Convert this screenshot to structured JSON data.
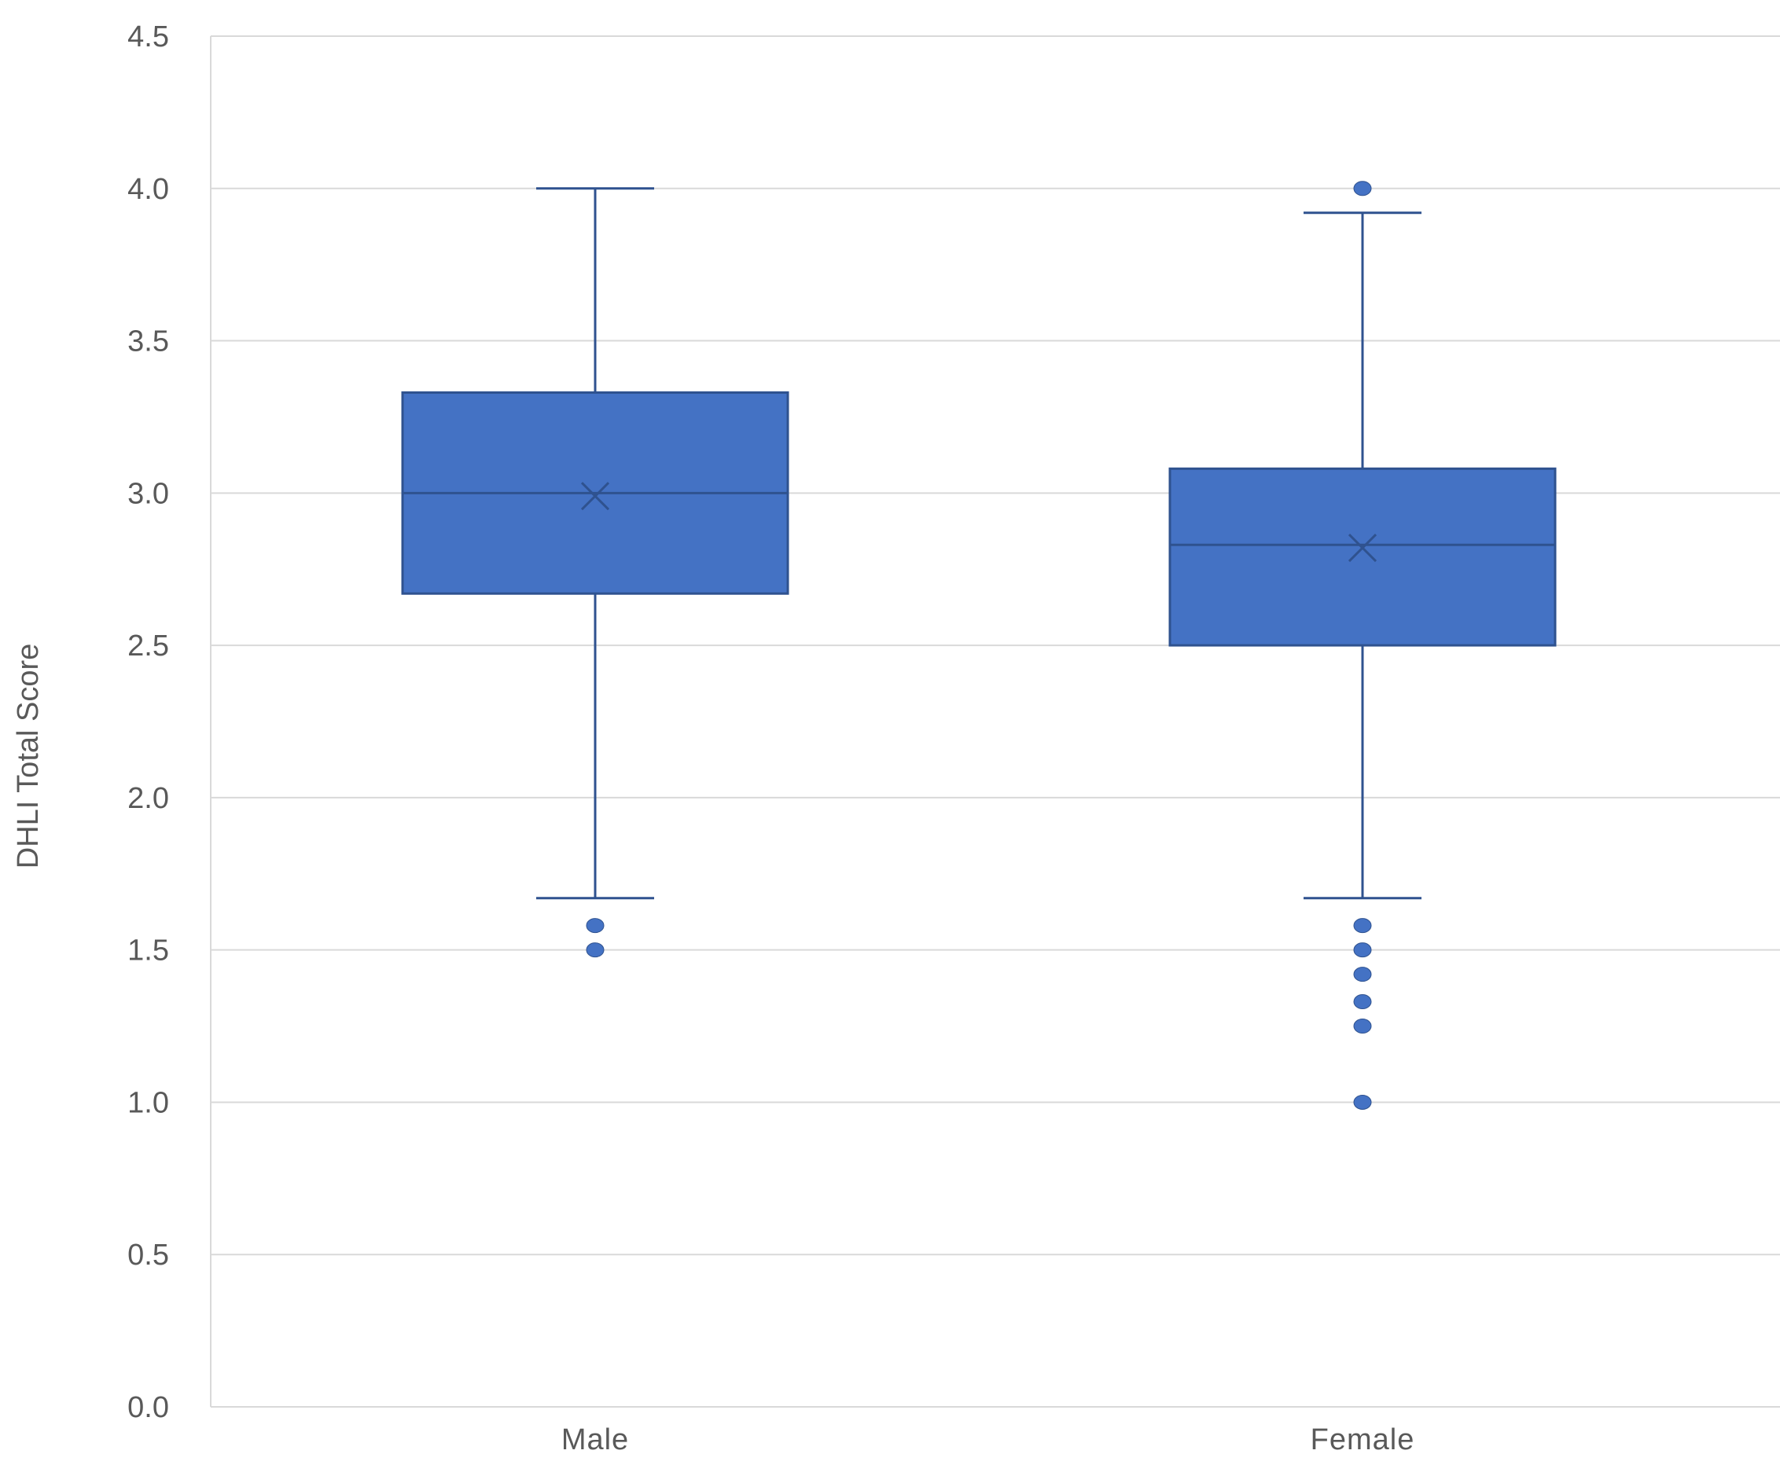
{
  "chart_data": {
    "type": "box",
    "ylabel": "DHLI Total Score",
    "xlabel": "",
    "ylim": [
      0,
      4.5
    ],
    "y_ticks": [
      0,
      0.5,
      1,
      1.5,
      2,
      2.5,
      3,
      3.5,
      4,
      4.5
    ],
    "y_tick_labels": [
      "0.0",
      "0.5",
      "1.0",
      "1.5",
      "2.0",
      "2.5",
      "3.0",
      "3.5",
      "4.0",
      "4.5"
    ],
    "grid": true,
    "categories": [
      "Male",
      "Female"
    ],
    "series": [
      {
        "category": "Male",
        "whisker_low": 1.67,
        "q1": 2.67,
        "median": 3.0,
        "mean": 2.99,
        "q3": 3.33,
        "whisker_high": 4.0,
        "outliers": [
          1.58,
          1.5
        ]
      },
      {
        "category": "Female",
        "whisker_low": 1.67,
        "q1": 2.5,
        "median": 2.83,
        "mean": 2.82,
        "q3": 3.08,
        "whisker_high": 3.92,
        "outliers": [
          4.0,
          1.58,
          1.5,
          1.42,
          1.33,
          1.25,
          1.0
        ]
      }
    ],
    "colors": {
      "box_fill": "#4472C4",
      "box_stroke": "#2F528F",
      "gridline": "#D9D9D9",
      "axis_text": "#595959"
    }
  }
}
